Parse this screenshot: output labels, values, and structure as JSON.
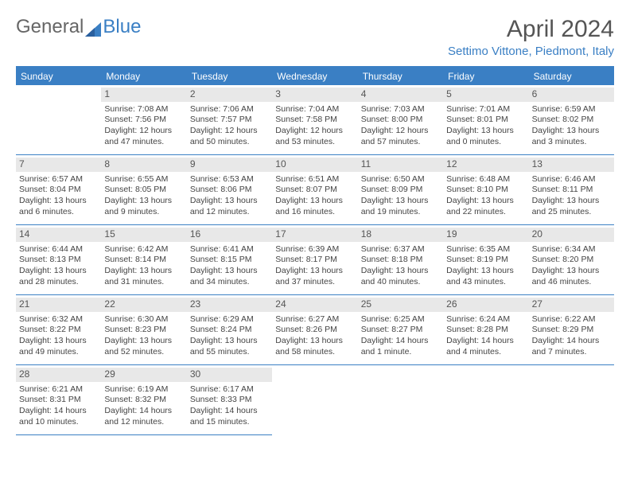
{
  "logo": {
    "first": "General",
    "second": "Blue"
  },
  "title": "April 2024",
  "location": "Settimo Vittone, Piedmont, Italy",
  "colors": {
    "accent": "#3a7fc4",
    "dayshade": "#e8e8e8",
    "text": "#444"
  },
  "daynames": [
    "Sunday",
    "Monday",
    "Tuesday",
    "Wednesday",
    "Thursday",
    "Friday",
    "Saturday"
  ],
  "firstDayOffset": 1,
  "days": [
    {
      "n": 1,
      "sunrise": "7:08 AM",
      "sunset": "7:56 PM",
      "daylight": "12 hours and 47 minutes."
    },
    {
      "n": 2,
      "sunrise": "7:06 AM",
      "sunset": "7:57 PM",
      "daylight": "12 hours and 50 minutes."
    },
    {
      "n": 3,
      "sunrise": "7:04 AM",
      "sunset": "7:58 PM",
      "daylight": "12 hours and 53 minutes."
    },
    {
      "n": 4,
      "sunrise": "7:03 AM",
      "sunset": "8:00 PM",
      "daylight": "12 hours and 57 minutes."
    },
    {
      "n": 5,
      "sunrise": "7:01 AM",
      "sunset": "8:01 PM",
      "daylight": "13 hours and 0 minutes."
    },
    {
      "n": 6,
      "sunrise": "6:59 AM",
      "sunset": "8:02 PM",
      "daylight": "13 hours and 3 minutes."
    },
    {
      "n": 7,
      "sunrise": "6:57 AM",
      "sunset": "8:04 PM",
      "daylight": "13 hours and 6 minutes."
    },
    {
      "n": 8,
      "sunrise": "6:55 AM",
      "sunset": "8:05 PM",
      "daylight": "13 hours and 9 minutes."
    },
    {
      "n": 9,
      "sunrise": "6:53 AM",
      "sunset": "8:06 PM",
      "daylight": "13 hours and 12 minutes."
    },
    {
      "n": 10,
      "sunrise": "6:51 AM",
      "sunset": "8:07 PM",
      "daylight": "13 hours and 16 minutes."
    },
    {
      "n": 11,
      "sunrise": "6:50 AM",
      "sunset": "8:09 PM",
      "daylight": "13 hours and 19 minutes."
    },
    {
      "n": 12,
      "sunrise": "6:48 AM",
      "sunset": "8:10 PM",
      "daylight": "13 hours and 22 minutes."
    },
    {
      "n": 13,
      "sunrise": "6:46 AM",
      "sunset": "8:11 PM",
      "daylight": "13 hours and 25 minutes."
    },
    {
      "n": 14,
      "sunrise": "6:44 AM",
      "sunset": "8:13 PM",
      "daylight": "13 hours and 28 minutes."
    },
    {
      "n": 15,
      "sunrise": "6:42 AM",
      "sunset": "8:14 PM",
      "daylight": "13 hours and 31 minutes."
    },
    {
      "n": 16,
      "sunrise": "6:41 AM",
      "sunset": "8:15 PM",
      "daylight": "13 hours and 34 minutes."
    },
    {
      "n": 17,
      "sunrise": "6:39 AM",
      "sunset": "8:17 PM",
      "daylight": "13 hours and 37 minutes."
    },
    {
      "n": 18,
      "sunrise": "6:37 AM",
      "sunset": "8:18 PM",
      "daylight": "13 hours and 40 minutes."
    },
    {
      "n": 19,
      "sunrise": "6:35 AM",
      "sunset": "8:19 PM",
      "daylight": "13 hours and 43 minutes."
    },
    {
      "n": 20,
      "sunrise": "6:34 AM",
      "sunset": "8:20 PM",
      "daylight": "13 hours and 46 minutes."
    },
    {
      "n": 21,
      "sunrise": "6:32 AM",
      "sunset": "8:22 PM",
      "daylight": "13 hours and 49 minutes."
    },
    {
      "n": 22,
      "sunrise": "6:30 AM",
      "sunset": "8:23 PM",
      "daylight": "13 hours and 52 minutes."
    },
    {
      "n": 23,
      "sunrise": "6:29 AM",
      "sunset": "8:24 PM",
      "daylight": "13 hours and 55 minutes."
    },
    {
      "n": 24,
      "sunrise": "6:27 AM",
      "sunset": "8:26 PM",
      "daylight": "13 hours and 58 minutes."
    },
    {
      "n": 25,
      "sunrise": "6:25 AM",
      "sunset": "8:27 PM",
      "daylight": "14 hours and 1 minute."
    },
    {
      "n": 26,
      "sunrise": "6:24 AM",
      "sunset": "8:28 PM",
      "daylight": "14 hours and 4 minutes."
    },
    {
      "n": 27,
      "sunrise": "6:22 AM",
      "sunset": "8:29 PM",
      "daylight": "14 hours and 7 minutes."
    },
    {
      "n": 28,
      "sunrise": "6:21 AM",
      "sunset": "8:31 PM",
      "daylight": "14 hours and 10 minutes."
    },
    {
      "n": 29,
      "sunrise": "6:19 AM",
      "sunset": "8:32 PM",
      "daylight": "14 hours and 12 minutes."
    },
    {
      "n": 30,
      "sunrise": "6:17 AM",
      "sunset": "8:33 PM",
      "daylight": "14 hours and 15 minutes."
    }
  ],
  "labels": {
    "sunrise": "Sunrise:",
    "sunset": "Sunset:",
    "daylight": "Daylight:"
  }
}
